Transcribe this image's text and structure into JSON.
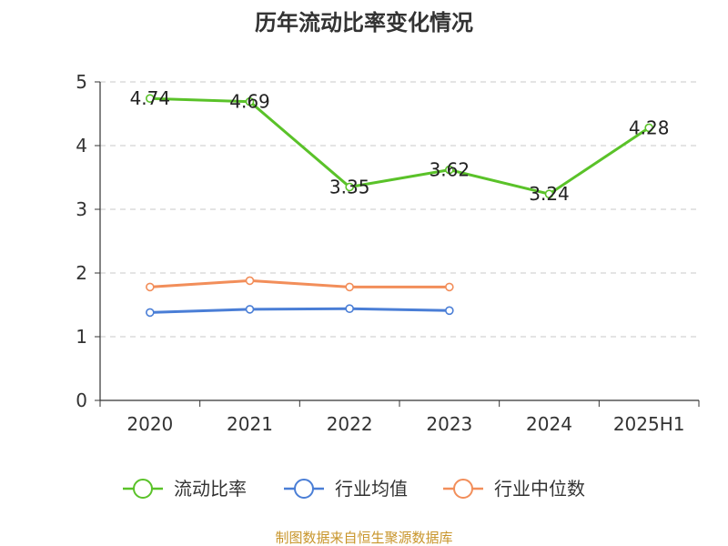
{
  "chart_data": {
    "type": "line",
    "title": "历年流动比率变化情况",
    "xlabel": "",
    "ylabel": "",
    "categories": [
      "2020",
      "2021",
      "2022",
      "2023",
      "2024",
      "2025H1"
    ],
    "ylim": [
      0,
      5
    ],
    "yticks": [
      "0",
      "1",
      "2",
      "3",
      "4",
      "5"
    ],
    "grid": true,
    "legend_position": "bottom",
    "series": [
      {
        "name": "流动比率",
        "color": "#5ac229",
        "values": [
          4.74,
          4.69,
          3.35,
          3.62,
          3.24,
          4.28
        ],
        "labels": [
          "4.74",
          "4.69",
          "3.35",
          "3.62",
          "3.24",
          "4.28"
        ]
      },
      {
        "name": "行业均值",
        "color": "#4a7ed6",
        "values": [
          1.38,
          1.43,
          1.44,
          1.41,
          null,
          null
        ]
      },
      {
        "name": "行业中位数",
        "color": "#f28e5a",
        "values": [
          1.78,
          1.88,
          1.78,
          1.78,
          null,
          null
        ]
      }
    ]
  },
  "footer": {
    "source": "制图数据来自恒生聚源数据库"
  }
}
